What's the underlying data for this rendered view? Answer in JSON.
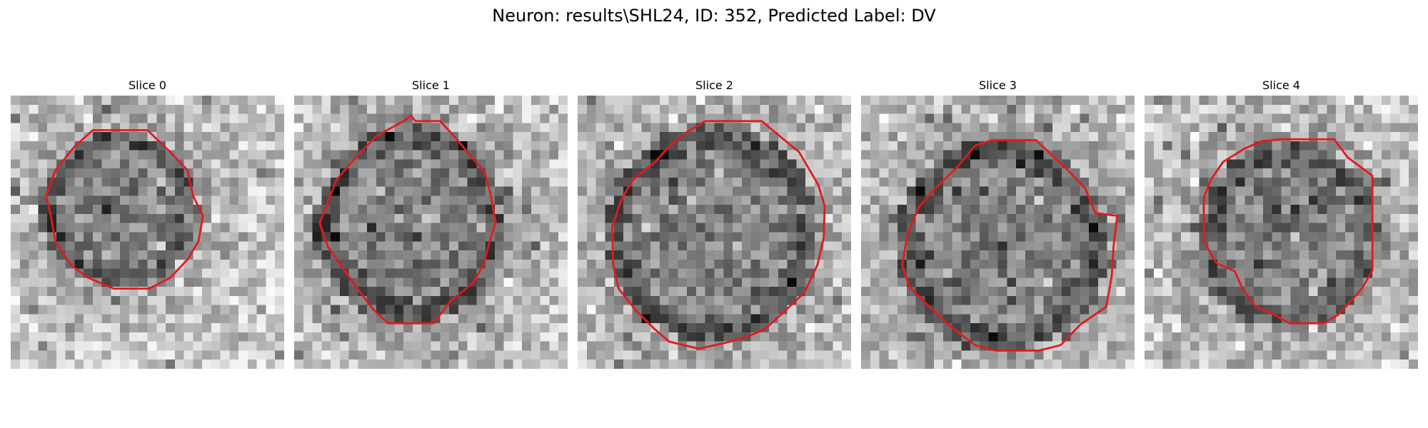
{
  "figure": {
    "title": "Neuron: results\\SHL24, ID: 352, Predicted Label: DV"
  },
  "panels": [
    {
      "title": "Slice 0"
    },
    {
      "title": "Slice 1"
    },
    {
      "title": "Slice 2"
    },
    {
      "title": "Slice 3"
    },
    {
      "title": "Slice 4"
    }
  ],
  "colors": {
    "contour": "#e31a1c",
    "background": "#ffffff"
  }
}
